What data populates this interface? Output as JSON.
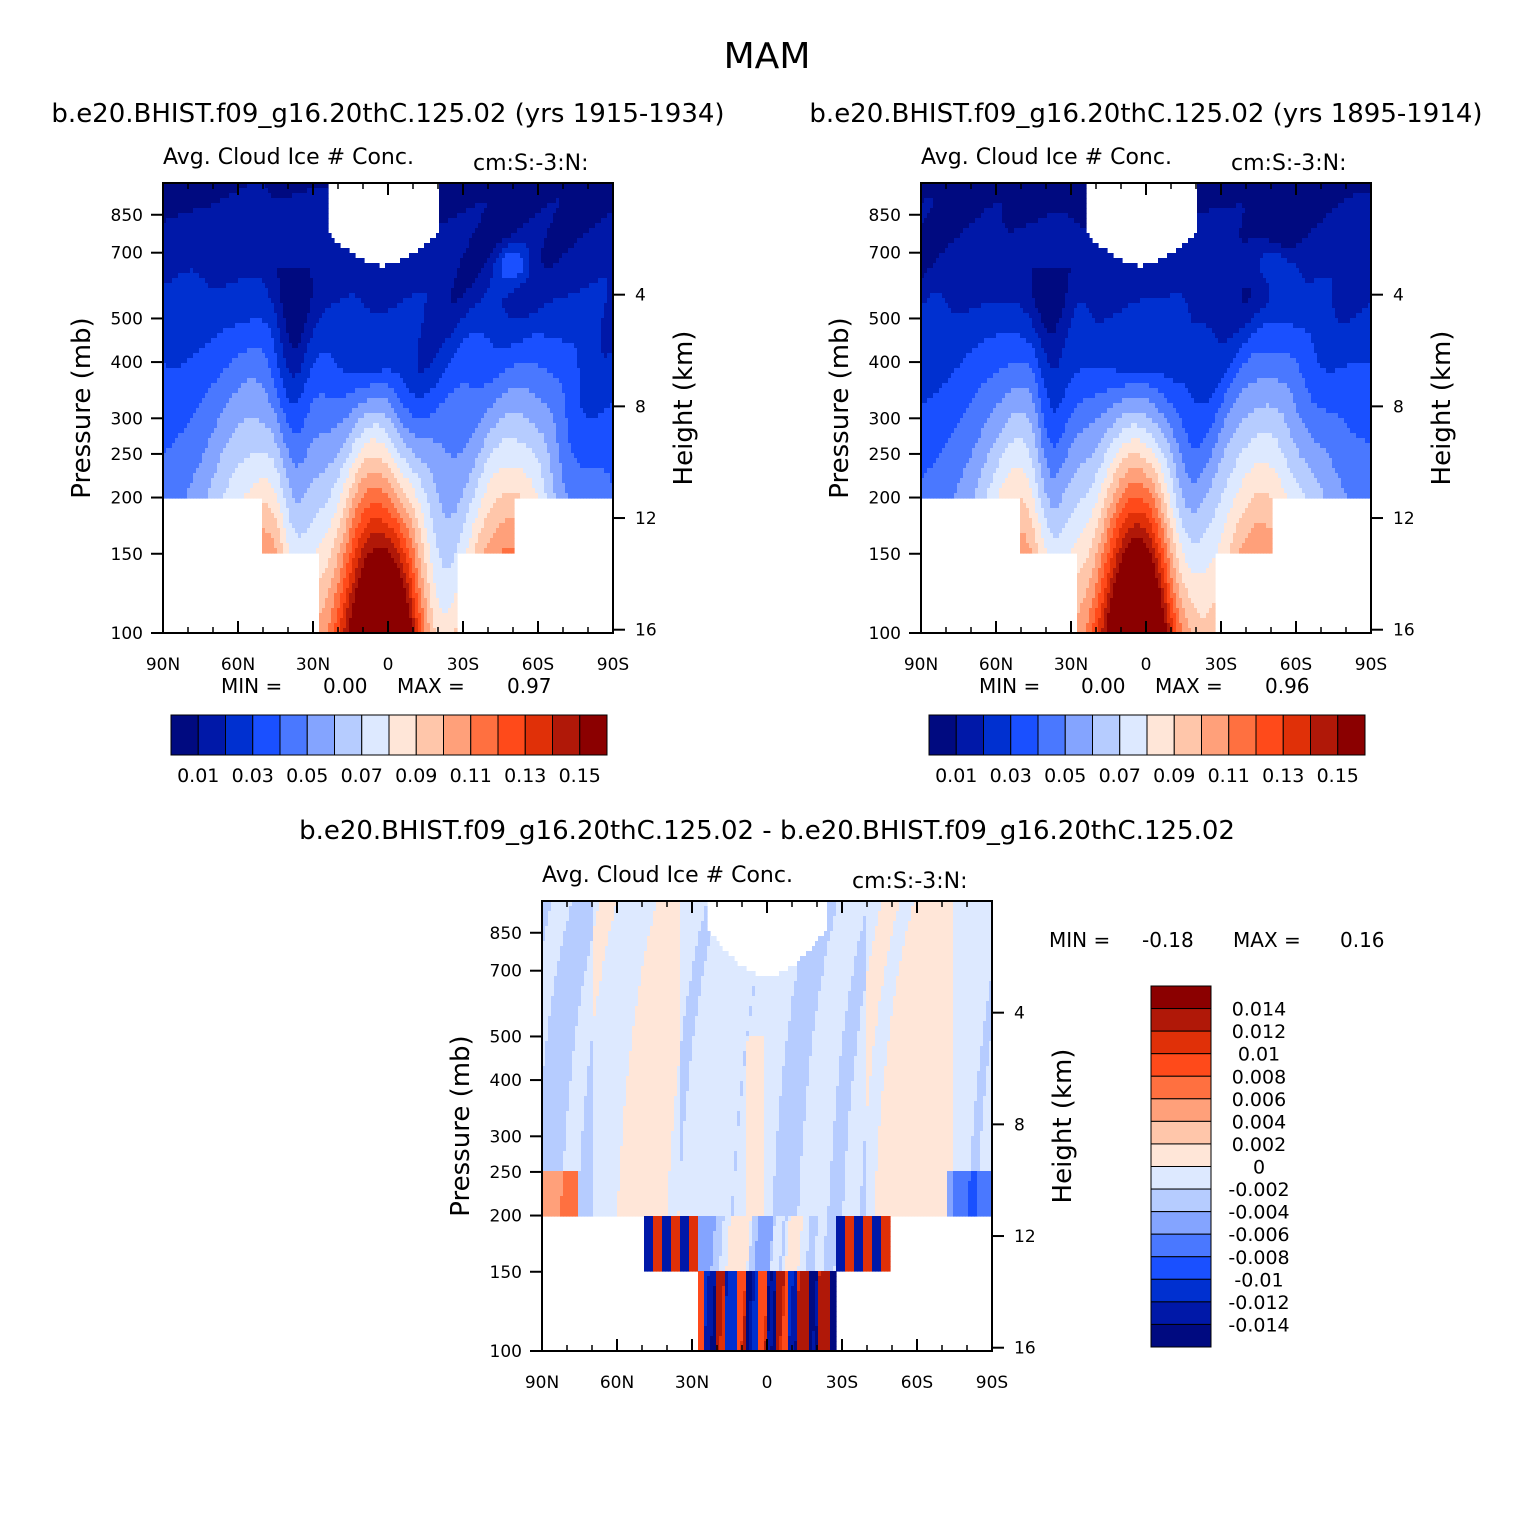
{
  "title": "MAM",
  "colors": {
    "seq": [
      "#000a80",
      "#0018a8",
      "#0030d0",
      "#1a50ff",
      "#4a78ff",
      "#84a4ff",
      "#b6ccff",
      "#dde9ff",
      "#ffe6d8",
      "#ffc6aa",
      "#ffa07a",
      "#ff7040",
      "#ff4a1a",
      "#e03008",
      "#b01808",
      "#8b0000"
    ],
    "diff": [
      "#000a80",
      "#0018a8",
      "#0030d0",
      "#1a50ff",
      "#4a78ff",
      "#84a4ff",
      "#b6ccff",
      "#dde9ff",
      "#ffe6d8",
      "#ffc6aa",
      "#ffa07a",
      "#ff7040",
      "#ff4a1a",
      "#e03008",
      "#b01808",
      "#8b0000"
    ]
  },
  "chart_data": [
    {
      "type": "heatmap",
      "case_title": "b.e20.BHIST.f09_g16.20thC.125.02 (yrs 1915-1934)",
      "variable": "Avg. Cloud Ice # Conc.",
      "units": "cm:S:-3:N:",
      "x_ticks": [
        "90N",
        "60N",
        "30N",
        "0",
        "30S",
        "60S",
        "90S"
      ],
      "y_ticks": [
        "100",
        "150",
        "200",
        "250",
        "300",
        "400",
        "500",
        "700",
        "850"
      ],
      "y2_ticks": [
        "16",
        "12",
        "8",
        "4"
      ],
      "ylabel": "Pressure (mb)",
      "y2label": "Height (km)",
      "min_label": "MIN =",
      "min_value": "0.00",
      "max_label": "MAX =",
      "max_value": "0.97",
      "levels": [
        0.01,
        0.02,
        0.03,
        0.04,
        0.05,
        0.06,
        0.07,
        0.08,
        0.09,
        0.1,
        0.11,
        0.12,
        0.13,
        0.14,
        0.15
      ],
      "colorbar_labels": [
        "0.01",
        "0.03",
        "0.05",
        "0.07",
        "0.09",
        "0.11",
        "0.13",
        "0.15"
      ]
    },
    {
      "type": "heatmap",
      "case_title": "b.e20.BHIST.f09_g16.20thC.125.02 (yrs 1895-1914)",
      "variable": "Avg. Cloud Ice # Conc.",
      "units": "cm:S:-3:N:",
      "x_ticks": [
        "90N",
        "60N",
        "30N",
        "0",
        "30S",
        "60S",
        "90S"
      ],
      "y_ticks": [
        "100",
        "150",
        "200",
        "250",
        "300",
        "400",
        "500",
        "700",
        "850"
      ],
      "y2_ticks": [
        "16",
        "12",
        "8",
        "4"
      ],
      "ylabel": "Pressure (mb)",
      "y2label": "Height (km)",
      "min_label": "MIN =",
      "min_value": "0.00",
      "max_label": "MAX =",
      "max_value": "0.96",
      "levels": [
        0.01,
        0.02,
        0.03,
        0.04,
        0.05,
        0.06,
        0.07,
        0.08,
        0.09,
        0.1,
        0.11,
        0.12,
        0.13,
        0.14,
        0.15
      ],
      "colorbar_labels": [
        "0.01",
        "0.03",
        "0.05",
        "0.07",
        "0.09",
        "0.11",
        "0.13",
        "0.15"
      ]
    },
    {
      "type": "heatmap",
      "case_title": "b.e20.BHIST.f09_g16.20thC.125.02 - b.e20.BHIST.f09_g16.20thC.125.02",
      "variable": "Avg. Cloud Ice # Conc.",
      "units": "cm:S:-3:N:",
      "x_ticks": [
        "90N",
        "60N",
        "30N",
        "0",
        "30S",
        "60S",
        "90S"
      ],
      "y_ticks": [
        "100",
        "150",
        "200",
        "250",
        "300",
        "400",
        "500",
        "700",
        "850"
      ],
      "y2_ticks": [
        "16",
        "12",
        "8",
        "4"
      ],
      "ylabel": "Pressure (mb)",
      "y2label": "Height (km)",
      "min_label": "MIN =",
      "min_value": "-0.18",
      "max_label": "MAX =",
      "max_value": "0.16",
      "levels": [
        -0.014,
        -0.012,
        -0.01,
        -0.008,
        -0.006,
        -0.004,
        -0.002,
        0,
        0.002,
        0.004,
        0.006,
        0.008,
        0.01,
        0.012,
        0.014
      ],
      "colorbar_labels": [
        "0.014",
        "0.012",
        "0.01",
        "0.008",
        "0.006",
        "0.004",
        "0.002",
        "0",
        "-0.002",
        "-0.004",
        "-0.006",
        "-0.008",
        "-0.01",
        "-0.012",
        "-0.014"
      ]
    }
  ]
}
